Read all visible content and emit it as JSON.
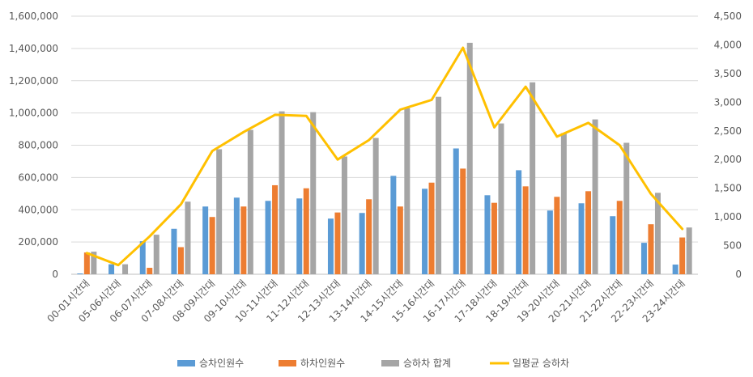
{
  "chart_data": {
    "type": "bar",
    "categories": [
      "00-01시간대",
      "05-06시간대",
      "06-07시간대",
      "07-08시간대",
      "08-09시간대",
      "09-10시간대",
      "10-11시간대",
      "11-12시간대",
      "12-13시간대",
      "13-14시간대",
      "14-15시간대",
      "15-16시간대",
      "16-17시간대",
      "17-18시간대",
      "18-19시간대",
      "19-20시간대",
      "20-21시간대",
      "21-22시간대",
      "22-23시간대",
      "23-24시간대"
    ],
    "series": [
      {
        "name": "승차인원수",
        "kind": "bar",
        "axis": "left",
        "color": "#5B9BD5",
        "values": [
          5000,
          62000,
          205000,
          282000,
          420000,
          475000,
          455000,
          470000,
          345000,
          380000,
          610000,
          530000,
          780000,
          490000,
          645000,
          395000,
          440000,
          360000,
          195000,
          60000
        ]
      },
      {
        "name": "하차인원수",
        "kind": "bar",
        "axis": "left",
        "color": "#ED7D31",
        "values": [
          135000,
          0,
          40000,
          168000,
          355000,
          420000,
          552000,
          533000,
          383000,
          465000,
          420000,
          568000,
          655000,
          443000,
          545000,
          480000,
          515000,
          455000,
          310000,
          228000
        ]
      },
      {
        "name": "승하차 합계",
        "kind": "bar",
        "axis": "left",
        "color": "#A5A5A5",
        "values": [
          140000,
          62000,
          245000,
          450000,
          775000,
          895000,
          1010000,
          1005000,
          730000,
          845000,
          1030000,
          1100000,
          1435000,
          935000,
          1190000,
          875000,
          960000,
          815000,
          505000,
          290000
        ]
      },
      {
        "name": "일평균 승하차",
        "kind": "line",
        "axis": "right",
        "color": "#FFC000",
        "values": [
          370,
          160,
          660,
          1220,
          2150,
          2480,
          2780,
          2760,
          2000,
          2340,
          2870,
          3040,
          3950,
          2560,
          3270,
          2400,
          2640,
          2250,
          1400,
          790
        ]
      }
    ],
    "ylim": [
      0,
      1600000
    ],
    "y_ticks": [
      "0",
      "200,000",
      "400,000",
      "600,000",
      "800,000",
      "1,000,000",
      "1,200,000",
      "1,400,000",
      "1,600,000"
    ],
    "y2lim": [
      0,
      4500
    ],
    "y2_ticks": [
      "0",
      "500",
      "1,000",
      "1,500",
      "2,000",
      "2,500",
      "3,000",
      "3,500",
      "4,000",
      "4,500"
    ],
    "title": "",
    "xlabel": "",
    "ylabel": "",
    "grid": true,
    "legend_position": "bottom"
  }
}
